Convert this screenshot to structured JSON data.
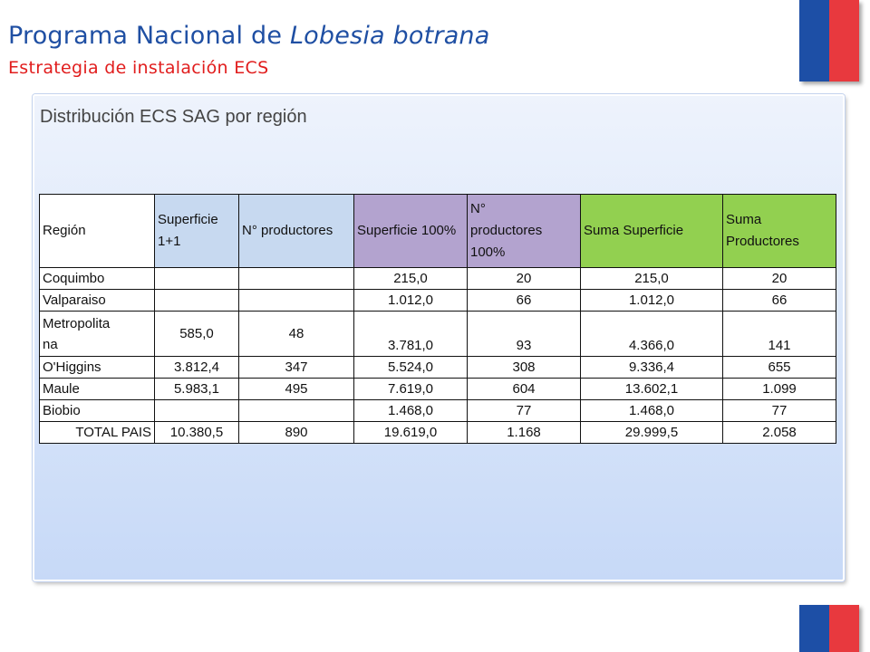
{
  "header": {
    "title_prefix": "Programa Nacional de ",
    "title_italic": "Lobesia botrana",
    "subtitle": "Estrategia de instalación ECS"
  },
  "panel": {
    "title": "Distribución ECS SAG por región"
  },
  "table": {
    "columns": [
      "Región",
      "Superficie 1+1",
      "N° productores",
      "Superficie 100%",
      "N° productores 100%",
      "Suma Superficie",
      "Suma Productores"
    ],
    "column_lines": {
      "sup11": [
        "Superficie",
        "1+1"
      ],
      "prod100": [
        "N°",
        "productores",
        "100%"
      ]
    },
    "rows": [
      [
        "Coquimbo",
        "",
        "",
        "215,0",
        "20",
        "215,0",
        "20"
      ],
      [
        "Valparaiso",
        "",
        "",
        "1.012,0",
        "66",
        "1.012,0",
        "66"
      ],
      [
        "Metropolitana",
        "585,0",
        "48",
        "3.781,0",
        "93",
        "4.366,0",
        "141"
      ],
      [
        "O'Higgins",
        "3.812,4",
        "347",
        "5.524,0",
        "308",
        "9.336,4",
        "655"
      ],
      [
        "Maule",
        "5.983,1",
        "495",
        "7.619,0",
        "604",
        "13.602,1",
        "1.099"
      ],
      [
        "Biobio",
        "",
        "",
        "1.468,0",
        "77",
        "1.468,0",
        "77"
      ],
      [
        "TOTAL PAIS",
        "10.380,5",
        "890",
        "19.619,0",
        "1.168",
        "29.999,5",
        "2.058"
      ]
    ],
    "metropolitana_lines": [
      "Metropolita",
      "na"
    ]
  },
  "colors": {
    "title_blue": "#1f4fa3",
    "subtitle_red": "#e11d1d",
    "flag_blue": "#1d4fa6",
    "flag_red": "#e8393e",
    "header_light_blue": "#c7d9f0",
    "header_purple": "#b3a3cf",
    "header_green": "#92d050"
  }
}
